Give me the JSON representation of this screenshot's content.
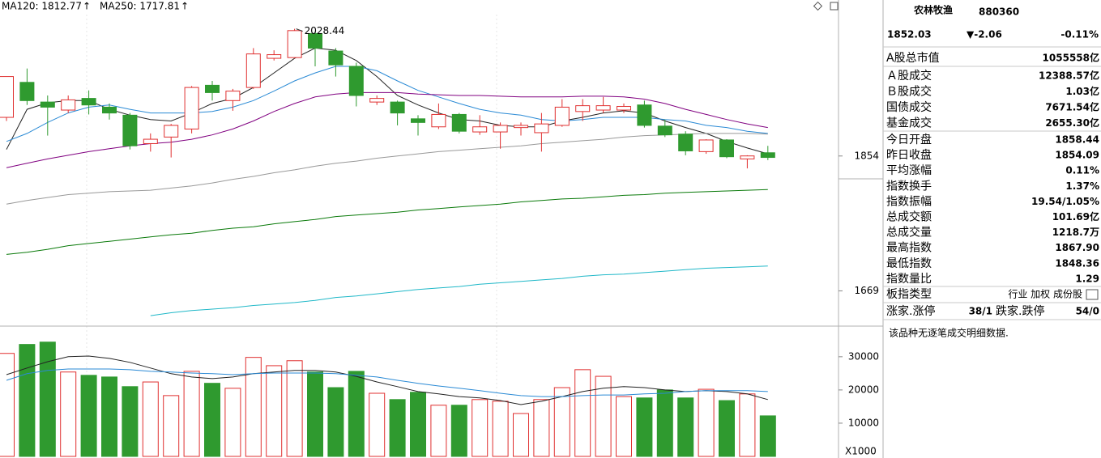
{
  "chart_data": [
    {
      "type": "candlestick",
      "up_color": "#e03030",
      "down_color": "#2f9a2f",
      "ylim": [
        1624,
        2048
      ],
      "yticks": [
        1669,
        1854
      ],
      "legend": [
        {
          "text": "MA120: 1812.77",
          "arrow": "↑",
          "color": "#0a7a0a",
          "arrow_color": "#e03030"
        },
        {
          "text": "MA250: 1717.81",
          "arrow": "↑",
          "color": "#20b8c8",
          "arrow_color": "#e03030"
        }
      ],
      "annotations": [
        {
          "text": "2028.44"
        }
      ],
      "open": [
        1907,
        1955,
        1928,
        1917,
        1933,
        1921,
        1910,
        1871,
        1880,
        1891,
        1951,
        1930,
        1948,
        1988,
        1989,
        2022,
        1998,
        1977,
        1928,
        1928,
        1905,
        1894,
        1911,
        1887,
        1887,
        1893,
        1886,
        1896,
        1915,
        1917,
        1917,
        1924,
        1895,
        1884,
        1860,
        1876,
        1850,
        1858.44
      ],
      "high": [
        1963,
        1974,
        1937,
        1937,
        1944,
        1926,
        1913,
        1885,
        1898,
        1950,
        1957,
        1946,
        2002,
        1999,
        2028.44,
        2025,
        2002,
        1982,
        1937,
        1930,
        1910,
        1926,
        1913,
        1910,
        1900,
        1900,
        1913,
        1932,
        1932,
        1935,
        1926,
        1930,
        1904,
        1888,
        1877,
        1877,
        1855,
        1867.9
      ],
      "low": [
        1902,
        1924,
        1882,
        1913,
        1911,
        1904,
        1863,
        1860,
        1852,
        1885,
        1930,
        1916,
        1946,
        1985,
        1988,
        1977,
        1963,
        1922,
        1924,
        1896,
        1882,
        1891,
        1885,
        1883,
        1864,
        1882,
        1860,
        1894,
        1902,
        1913,
        1913,
        1893,
        1880,
        1855,
        1857,
        1851,
        1837,
        1848.36
      ],
      "close": [
        1963,
        1930,
        1921,
        1931,
        1924,
        1913,
        1868,
        1877,
        1896,
        1948,
        1941,
        1943,
        1994,
        1993,
        2026,
        2002,
        1979,
        1937,
        1933,
        1913,
        1900,
        1911,
        1888,
        1894,
        1896,
        1896,
        1898,
        1921,
        1923,
        1923,
        1922,
        1896,
        1883,
        1861,
        1876,
        1853,
        1854.09,
        1852.03
      ],
      "lines": [
        {
          "color": "#222222",
          "values": [
            1863,
            1918,
            1927,
            1930,
            1930,
            1918,
            1910,
            1904,
            1902,
            1913,
            1926,
            1933,
            1948,
            1968,
            1988,
            2002,
            1999,
            1985,
            1963,
            1937,
            1924,
            1913,
            1904,
            1902,
            1896,
            1894,
            1894,
            1902,
            1907,
            1913,
            1916,
            1913,
            1902,
            1893,
            1885,
            1874,
            1865,
            1857
          ]
        },
        {
          "color": "#2a8ad5",
          "values": [
            1874,
            1885,
            1900,
            1913,
            1921,
            1924,
            1918,
            1913,
            1913,
            1913,
            1915,
            1921,
            1930,
            1943,
            1957,
            1968,
            1977,
            1977,
            1971,
            1957,
            1944,
            1935,
            1926,
            1918,
            1913,
            1910,
            1904,
            1902,
            1904,
            1907,
            1907,
            1907,
            1904,
            1902,
            1896,
            1893,
            1888,
            1885
          ]
        },
        {
          "color": "#800080",
          "values": [
            1838,
            1844,
            1850,
            1855,
            1860,
            1864,
            1868,
            1871,
            1873,
            1877,
            1883,
            1891,
            1902,
            1915,
            1926,
            1935,
            1939,
            1941,
            1941,
            1941,
            1939,
            1938,
            1937,
            1937,
            1936,
            1935,
            1935,
            1935,
            1936,
            1936,
            1935,
            1932,
            1926,
            1918,
            1911,
            1904,
            1898,
            1893
          ]
        },
        {
          "color": "#999999",
          "values": [
            1788,
            1793,
            1797,
            1801,
            1803,
            1805,
            1806,
            1807,
            1810,
            1813,
            1817,
            1822,
            1826,
            1831,
            1835,
            1840,
            1844,
            1847,
            1851,
            1854,
            1857,
            1860,
            1862,
            1864,
            1866,
            1868,
            1871,
            1873,
            1875,
            1877,
            1880,
            1882,
            1883,
            1884,
            1885,
            1885,
            1885,
            1884
          ]
        },
        {
          "color": "#0a7a0a",
          "values": [
            1719,
            1722,
            1726,
            1731,
            1734,
            1737,
            1740,
            1743,
            1746,
            1748,
            1752,
            1755,
            1757,
            1761,
            1764,
            1767,
            1771,
            1773,
            1775,
            1777,
            1780,
            1782,
            1784,
            1786,
            1788,
            1791,
            1793,
            1795,
            1796,
            1798,
            1800,
            1801,
            1803,
            1804,
            1805,
            1806,
            1807,
            1808
          ]
        },
        {
          "color": "#20b8c8",
          "values": [
            null,
            null,
            null,
            null,
            null,
            null,
            null,
            1635,
            1639,
            1642,
            1644,
            1646,
            1649,
            1651,
            1653,
            1656,
            1660,
            1662,
            1665,
            1668,
            1671,
            1673,
            1675,
            1678,
            1680,
            1682,
            1684,
            1686,
            1689,
            1691,
            1692,
            1694,
            1696,
            1698,
            1700,
            1701,
            1702,
            1703
          ]
        }
      ]
    },
    {
      "type": "bar",
      "ylim": [
        0,
        38000
      ],
      "yticks": [
        10000,
        20000,
        30000
      ],
      "unit_label": "X1000",
      "values": [
        31000,
        33700,
        34400,
        25400,
        24400,
        23900,
        21000,
        22400,
        18300,
        25600,
        22000,
        20500,
        29800,
        27300,
        28800,
        25400,
        20700,
        25600,
        19000,
        17100,
        19300,
        15400,
        15400,
        17100,
        16600,
        12900,
        17100,
        20700,
        26100,
        24100,
        18000,
        17600,
        20000,
        17600,
        20200,
        16800,
        18800,
        12200
      ],
      "lines": [
        {
          "color": "#222222",
          "values": [
            24600,
            26600,
            28500,
            30000,
            30200,
            29500,
            28300,
            26600,
            24900,
            23900,
            23400,
            23900,
            24900,
            25400,
            25900,
            25900,
            25400,
            24100,
            22400,
            21000,
            19500,
            18800,
            18000,
            17600,
            16800,
            15600,
            16600,
            18000,
            19500,
            20500,
            21000,
            20700,
            20000,
            19500,
            19800,
            19500,
            18800,
            17100
          ]
        },
        {
          "color": "#2a8ad5",
          "values": [
            22900,
            24900,
            25900,
            26300,
            26300,
            26300,
            26100,
            25600,
            25400,
            25100,
            24900,
            24600,
            24900,
            25100,
            25100,
            25100,
            24900,
            24400,
            23900,
            22900,
            22000,
            21200,
            20500,
            19800,
            19000,
            18300,
            18000,
            18000,
            18300,
            18500,
            18500,
            18800,
            19000,
            19500,
            19800,
            19800,
            19800,
            19500
          ]
        }
      ]
    }
  ],
  "info_panel": {
    "name": "农林牧渔",
    "code": "880360",
    "price": "1852.03",
    "change": "▼-2.06",
    "change_pct": "-0.11%",
    "quote_color": "#1a8a1a",
    "groups": [
      [
        {
          "label": "A股总市值",
          "value": "1055558亿"
        }
      ],
      [
        {
          "label": "Ａ股成交",
          "value": "12388.57亿"
        },
        {
          "label": "Ｂ股成交",
          "value": "1.03亿"
        },
        {
          "label": "国债成交",
          "value": "7671.54亿"
        },
        {
          "label": "基金成交",
          "value": "2655.30亿"
        }
      ],
      [
        {
          "label": "今日开盘",
          "value": "1858.44",
          "color": "#e02020"
        },
        {
          "label": "昨日收盘",
          "value": "1854.09"
        },
        {
          "label": "平均涨幅",
          "value": "0.11%",
          "color": "#e02020"
        },
        {
          "label": "指数换手",
          "value": "1.37%"
        },
        {
          "label": "指数振幅",
          "value": "19.54/1.05%"
        },
        {
          "label": "总成交额",
          "value": "101.69亿"
        },
        {
          "label": "总成交量",
          "value": "1218.7万"
        },
        {
          "label": "最高指数",
          "value": "1867.90",
          "color": "#e02020"
        },
        {
          "label": "最低指数",
          "value": "1848.36",
          "color": "#1a8a1a"
        },
        {
          "label": "指数量比",
          "value": "1.29",
          "color": "#e02020"
        }
      ],
      [
        {
          "label": "板指类型",
          "value": "行业 加权 成份股"
        }
      ]
    ],
    "breadth": {
      "up_label": "涨家.涨停",
      "up_value": "38/1",
      "up_color": "#e02020",
      "down_label": "跌家.跌停",
      "down_value": "54/0",
      "down_color": "#1a8a1a"
    },
    "note": "该品种无逐笔成交明细数据."
  }
}
